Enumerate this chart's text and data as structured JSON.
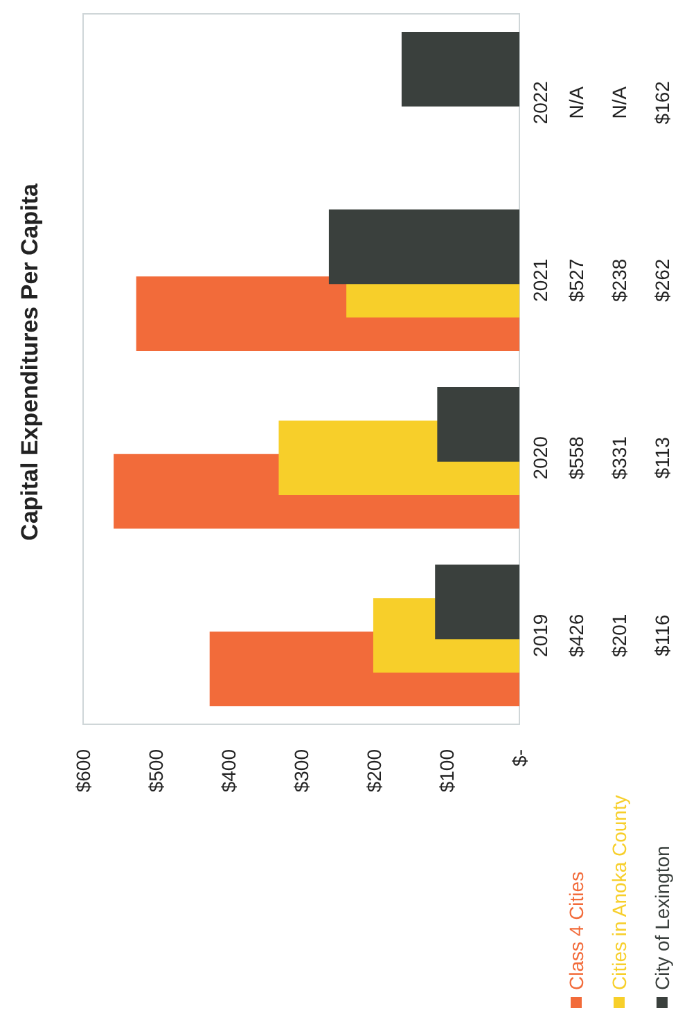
{
  "chart_data": {
    "type": "bar",
    "orientation": "horizontal",
    "title": "Capital Expenditures Per Capita",
    "categories": [
      "2022",
      "2021",
      "2020",
      "2019"
    ],
    "series": [
      {
        "name": "Class 4 Cities",
        "color": "#f26b3a",
        "values": [
          null,
          527,
          558,
          426
        ],
        "value_labels": [
          "N/A",
          "$527",
          "$558",
          "$426"
        ]
      },
      {
        "name": "Cities in Anoka County",
        "color": "#f7cf2a",
        "values": [
          null,
          238,
          331,
          201
        ],
        "value_labels": [
          "N/A",
          "$238",
          "$331",
          "$201"
        ]
      },
      {
        "name": "City of Lexington",
        "color": "#3a403d",
        "values": [
          162,
          262,
          113,
          116
        ],
        "value_labels": [
          "$162",
          "$262",
          "$113",
          "$116"
        ]
      }
    ],
    "xlim": [
      600,
      0
    ],
    "xticks": [
      {
        "value": 600,
        "label": "$600"
      },
      {
        "value": 500,
        "label": "$500"
      },
      {
        "value": 400,
        "label": "$400"
      },
      {
        "value": 300,
        "label": "$300"
      },
      {
        "value": 200,
        "label": "$200"
      },
      {
        "value": 100,
        "label": "$100"
      },
      {
        "value": 0,
        "label": "$-"
      }
    ],
    "grid": false,
    "legend": "bottom right"
  }
}
